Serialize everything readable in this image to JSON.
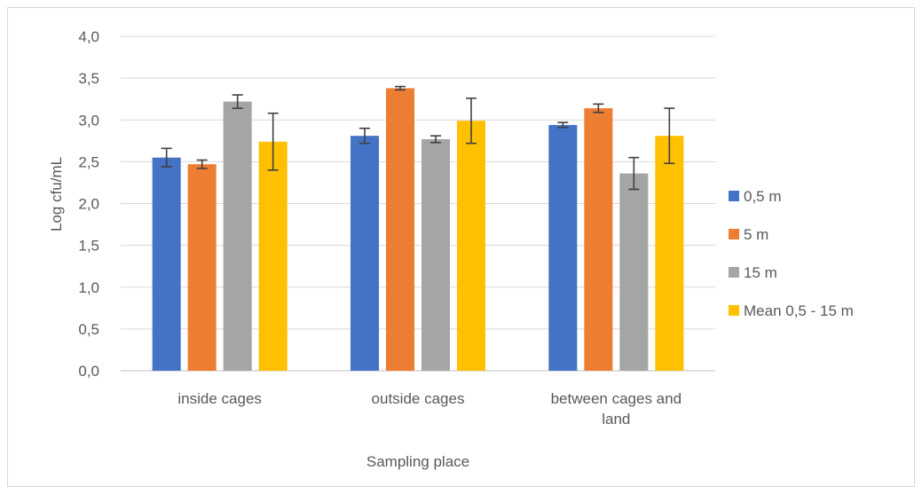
{
  "chart_data": {
    "type": "bar",
    "title": "",
    "xlabel": "Sampling place",
    "ylabel": "Log cfu/mL",
    "ylim": [
      0,
      4
    ],
    "y_ticks": [
      "0,0",
      "0,5",
      "1,0",
      "1,5",
      "2,0",
      "2,5",
      "3,0",
      "3,5",
      "4,0"
    ],
    "y_tick_values": [
      0,
      0.5,
      1.0,
      1.5,
      2.0,
      2.5,
      3.0,
      3.5,
      4.0
    ],
    "grid": true,
    "legend_position": "right",
    "categories": [
      [
        "inside cages"
      ],
      [
        "outside cages"
      ],
      [
        "between cages and",
        "land"
      ]
    ],
    "series": [
      {
        "name": "0,5 m",
        "color": "#4472c4",
        "values": [
          2.55,
          2.81,
          2.94
        ],
        "errors": [
          0.11,
          0.09,
          0.03
        ]
      },
      {
        "name": "5 m",
        "color": "#ed7d31",
        "values": [
          2.47,
          3.38,
          3.14
        ],
        "errors": [
          0.05,
          0.02,
          0.05
        ]
      },
      {
        "name": "15 m",
        "color": "#a5a5a5",
        "values": [
          3.22,
          2.77,
          2.36
        ],
        "errors": [
          0.08,
          0.04,
          0.19
        ]
      },
      {
        "name": "Mean 0,5 - 15 m",
        "color": "#ffc000",
        "values": [
          2.74,
          2.99,
          2.81
        ],
        "errors": [
          0.34,
          0.27,
          0.33
        ]
      }
    ]
  }
}
